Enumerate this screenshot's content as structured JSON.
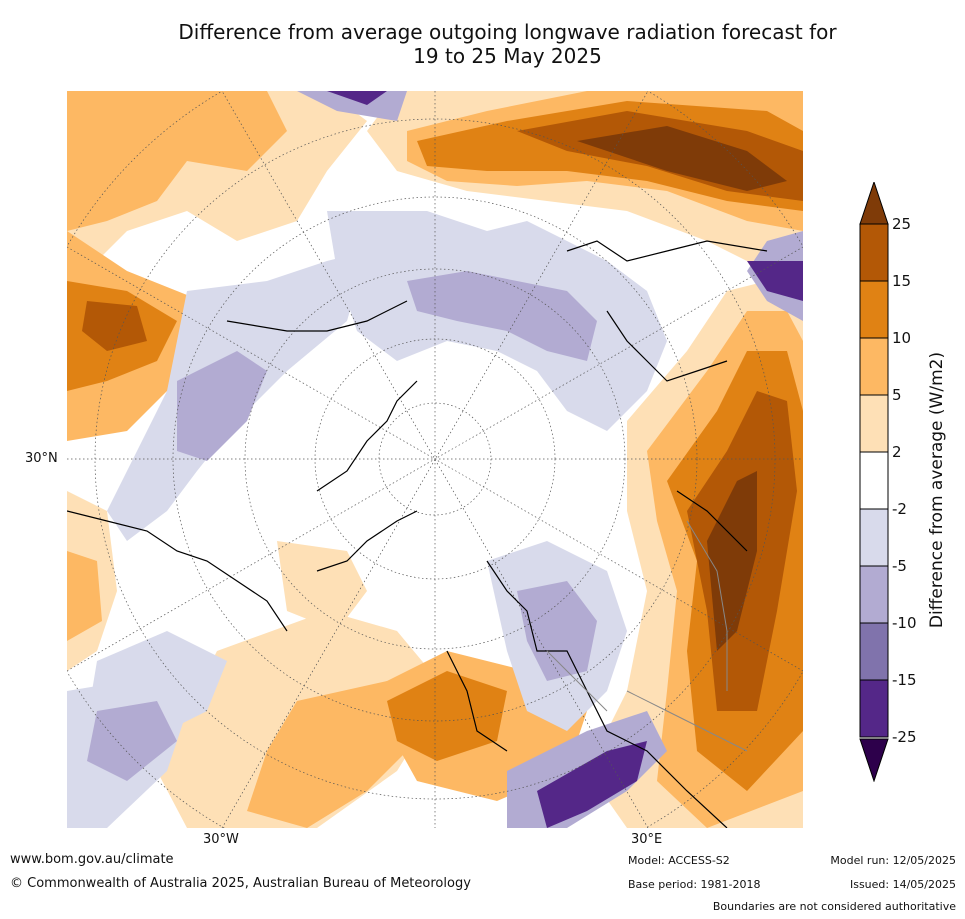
{
  "title": {
    "line1": "Difference from average outgoing longwave radiation forecast for",
    "line2": "19 to 25 May 2025"
  },
  "map": {
    "lon_labels": [
      "30°W",
      "30°E"
    ],
    "lat_labels": [
      "30°N"
    ]
  },
  "legend": {
    "title": "Difference from average (W/m2)",
    "ticks": [
      "25",
      "15",
      "10",
      "5",
      "2",
      "-2",
      "-5",
      "-10",
      "-15",
      "-25"
    ],
    "colors": [
      "#7f3b08",
      "#b35806",
      "#e08214",
      "#fdb863",
      "#fee0b6",
      "#ffffff",
      "#d8daeb",
      "#b2abd2",
      "#8073ac",
      "#542788",
      "#2d004b"
    ]
  },
  "footer": {
    "website": "www.bom.gov.au/climate",
    "copyright": "© Commonwealth of Australia 2025, Australian Bureau of Meteorology",
    "model": "Model: ACCESS-S2",
    "base_period": "Base period: 1981-2018",
    "model_run": "Model run: 12/05/2025",
    "issued": "Issued: 14/05/2025",
    "disclaimer": "Boundaries are not considered authoritative"
  }
}
